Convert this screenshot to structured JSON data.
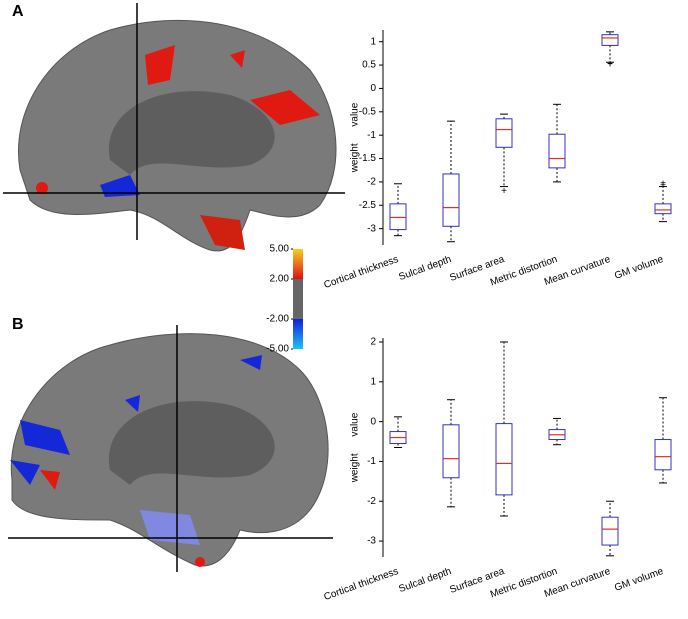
{
  "chart_data": [
    {
      "type": "box",
      "label": "A",
      "ylabel": "weight value",
      "categories": [
        "Cortical thickness",
        "Sulcal depth",
        "Surface area",
        "Metric distortion",
        "Mean curvature",
        "GM volume"
      ],
      "boxes": [
        {
          "whislo": -3.15,
          "q1": -3.02,
          "med": -2.76,
          "q3": -2.47,
          "whishi": -2.04
        },
        {
          "whislo": -3.28,
          "q1": -2.95,
          "med": -2.55,
          "q3": -1.83,
          "whishi": -0.7
        },
        {
          "whislo": -2.1,
          "q1": -1.26,
          "med": -0.88,
          "q3": -0.65,
          "whishi": -0.55,
          "fliers": [
            -2.2
          ]
        },
        {
          "whislo": -2.0,
          "q1": -1.7,
          "med": -1.5,
          "q3": -0.98,
          "whishi": -0.34
        },
        {
          "whislo": 0.56,
          "q1": 0.92,
          "med": 1.08,
          "q3": 1.15,
          "whishi": 1.21,
          "fliers": [
            0.52,
            0.5
          ]
        },
        {
          "whislo": -2.85,
          "q1": -2.68,
          "med": -2.6,
          "q3": -2.47,
          "whishi": -2.1,
          "fliers": [
            -2.04,
            -2.08
          ]
        }
      ],
      "ylim": [
        -3.35,
        1.25
      ],
      "yticks": [
        -3,
        -2.5,
        -2,
        -1.5,
        -1,
        -0.5,
        0,
        0.5,
        1
      ]
    },
    {
      "type": "box",
      "label": "B",
      "ylabel": "weight value",
      "categories": [
        "Cortical thickness",
        "Sulcal depth",
        "Surface area",
        "Metric distortion",
        "Mean curvature",
        "GM volume"
      ],
      "boxes": [
        {
          "whislo": -0.65,
          "q1": -0.55,
          "med": -0.4,
          "q3": -0.25,
          "whishi": 0.12
        },
        {
          "whislo": -2.14,
          "q1": -1.41,
          "med": -0.93,
          "q3": -0.08,
          "whishi": 0.55
        },
        {
          "whislo": -2.37,
          "q1": -1.84,
          "med": -1.05,
          "q3": -0.05,
          "whishi": 2.0
        },
        {
          "whislo": -0.58,
          "q1": -0.45,
          "med": -0.33,
          "q3": -0.2,
          "whishi": 0.08
        },
        {
          "whislo": -3.37,
          "q1": -3.1,
          "med": -2.7,
          "q3": -2.4,
          "whishi": -2.0
        },
        {
          "whislo": -1.54,
          "q1": -1.21,
          "med": -0.88,
          "q3": -0.45,
          "whishi": 0.6
        }
      ],
      "ylim": [
        -3.4,
        2.1
      ],
      "yticks": [
        -3,
        -2,
        -1,
        0,
        1,
        2
      ]
    },
    {
      "type": "colorbar",
      "ylim": [
        -5,
        5
      ],
      "yticks": [
        {
          "value": 5,
          "label": "5.00"
        },
        {
          "value": 2,
          "label": "2.00"
        },
        {
          "value": -2,
          "label": "-2.00"
        },
        {
          "value": -5,
          "label": "-5.00"
        }
      ]
    }
  ]
}
